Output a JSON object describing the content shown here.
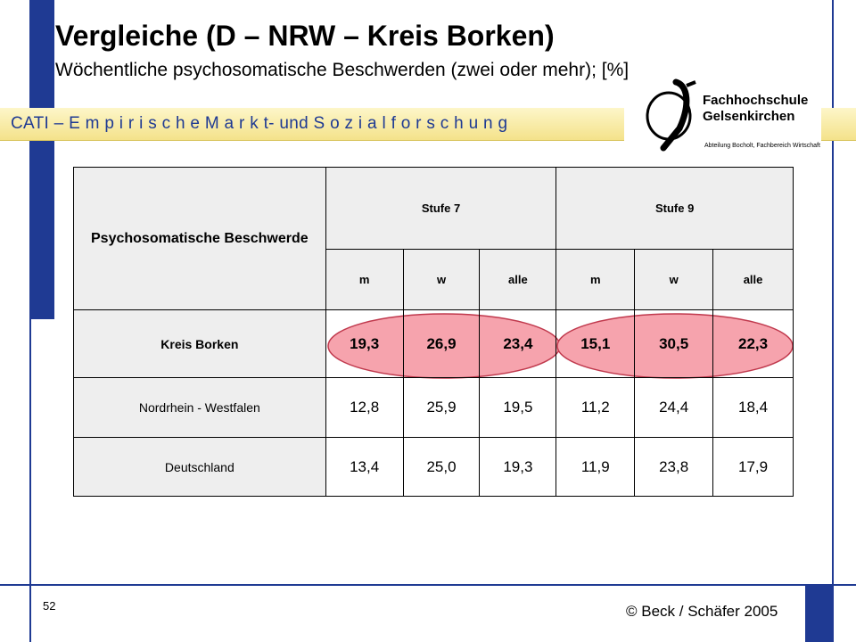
{
  "header": {
    "title": "Vergleiche (D – NRW – Kreis Borken)",
    "subtitle": "Wöchentliche psychosomatische Beschwerden (zwei oder mehr); [%]"
  },
  "band": {
    "text": "CATI – E m p i r i s c h e  M a r k t- und S o z i a l f o r s c h u n g"
  },
  "logo": {
    "line1": "Fachhochschule",
    "line2": "Gelsenkirchen",
    "line3": "Abteilung Bocholt, Fachbereich Wirtschaft"
  },
  "table": {
    "corner": "Psychosomatische Beschwerde",
    "groups": [
      "Stufe 7",
      "Stufe 9"
    ],
    "subcols": [
      "m",
      "w",
      "alle",
      "m",
      "w",
      "alle"
    ],
    "rows": [
      {
        "label": "Kreis Borken",
        "values": [
          "19,3",
          "26,9",
          "23,4",
          "15,1",
          "30,5",
          "22,3"
        ]
      },
      {
        "label": "Nordrhein - Westfalen",
        "values": [
          "12,8",
          "25,9",
          "19,5",
          "11,2",
          "24,4",
          "18,4"
        ]
      },
      {
        "label": "Deutschland",
        "values": [
          "13,4",
          "25,0",
          "19,3",
          "11,9",
          "23,8",
          "17,9"
        ]
      }
    ]
  },
  "footer": {
    "page_number": "52",
    "copyright": "© Beck / Schäfer 2005"
  },
  "colors": {
    "frame": "#1f3a93",
    "highlight_fill": "#f6a3ad",
    "highlight_stroke": "#c0394d"
  }
}
